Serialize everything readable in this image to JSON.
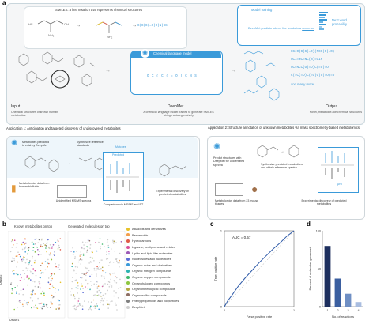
{
  "panel_a": {
    "letter": "a",
    "smiles_caption": "SMILES: a line notation that represents chemical structures",
    "smiles_string": "C(C(C(=O)O)N)CS",
    "model_training": "Model training",
    "deepmet_predicts_prefix": "DeepMet predicts tokens like words in a ",
    "deepmet_predicts_suffix": "sentence",
    "next_word": "Next word probability",
    "clm_label": "Chemical language model",
    "clm_sequence": "O C ( C ( = O ) C N S",
    "outputs": [
      "OS(O)C(S(=O)(NCC(O)=O)",
      "NC1=NC=NC(N)=C1N",
      "NC(NCC(O)=O)C(=O)=O",
      "C(=C(=O)C(=O)O)C(=O)=O",
      "and many more"
    ],
    "input_title": "Input",
    "input_sub": "Chemical structures of known human metabolites",
    "deepmet_title": "DeepMet",
    "deepmet_sub": "A chemical language model trained to generate SMILES strings autoregressively",
    "output_title": "Output",
    "output_sub": "Novel, metabolite-like chemical structures"
  },
  "app1": {
    "title": "Application 1: Anticipation and targeted discovery of undiscovered metabolites",
    "predicted": "Metabolites predicted to exist by DeepMet",
    "synthesize": "Synthesize reference standards",
    "matches": "Matches",
    "predicted_lbl": "Predicted",
    "metabolomics": "Metabolomics data from human biofluids",
    "unidentified": "Unidentified MS/MS spectra",
    "comparison": "Comparison via MS/MS and RT",
    "experimental": "Experimental discovery of predicted metabolites"
  },
  "app2": {
    "title": "Application 2: Structure annotation of unknown metabolites via mass spectrometry-based metabolomics",
    "predict": "Predict structures with DeepMet for unidentified spectra",
    "synthesize": "Synthesize predicted metabolites and obtain reference spectra",
    "metabolomics": "Metabolomics data from 23 mouse tissues",
    "experimental": "Experimental discovery of predicted metabolites",
    "ms_lbl": "μRT"
  },
  "panel_b": {
    "letter": "b",
    "left_title": "Known metabolites on top",
    "right_title": "Generated molecules on top",
    "xlabel": "UMAP1",
    "ylabel": "UMAP2",
    "legend": [
      {
        "label": "Alkaloids and derivatives",
        "color": "#e6c229"
      },
      {
        "label": "Benzenoids",
        "color": "#f29e4c"
      },
      {
        "label": "Hydrocarbons",
        "color": "#e05a47"
      },
      {
        "label": "Lignans, neolignans and related",
        "color": "#d94f9b"
      },
      {
        "label": "Lipids and lipid-like molecules",
        "color": "#9b59b6"
      },
      {
        "label": "Nucleosides and nucleotides",
        "color": "#5b6dd6"
      },
      {
        "label": "Organic acids and derivatives",
        "color": "#3a9ad9"
      },
      {
        "label": "Organic nitrogen compounds",
        "color": "#2bb3b1"
      },
      {
        "label": "Organic oxygen compounds",
        "color": "#3fb86b"
      },
      {
        "label": "Organohalogen compounds",
        "color": "#8cc63f"
      },
      {
        "label": "Organoheterocyclic compounds",
        "color": "#b5a642"
      },
      {
        "label": "Organosulfur compounds",
        "color": "#8d6e63"
      },
      {
        "label": "Phenylpropanoids and polyketides",
        "color": "#7f7f7f"
      },
      {
        "label": "DeepMet",
        "color": "#cfcfcf"
      }
    ]
  },
  "chart_data": [
    {
      "type": "line",
      "panel": "c",
      "annotation": "AUC = 0.57",
      "xlabel": "False positive rate",
      "ylabel": "True positive rate",
      "xlim": [
        0,
        1
      ],
      "ylim": [
        0,
        1
      ],
      "series": [
        {
          "x": [
            0,
            0.05,
            0.1,
            0.2,
            0.3,
            0.4,
            0.5,
            0.6,
            0.7,
            0.8,
            0.9,
            1.0
          ],
          "y": [
            0,
            0.08,
            0.14,
            0.27,
            0.38,
            0.48,
            0.58,
            0.67,
            0.76,
            0.84,
            0.93,
            1.0
          ]
        }
      ]
    },
    {
      "type": "bar",
      "panel": "d",
      "xlabel": "No. of reactions",
      "ylabel": "Per cent of molecules generated",
      "categories": [
        "1",
        "2",
        "3",
        "4"
      ],
      "values": [
        80,
        37,
        17,
        6
      ],
      "ylim": [
        0,
        100
      ],
      "yticks": [
        0,
        50,
        100
      ],
      "colors": [
        "#1d2f5e",
        "#3b5fa0",
        "#6f8fc4",
        "#a9bde0"
      ]
    }
  ],
  "panel_c": {
    "letter": "c"
  },
  "panel_d": {
    "letter": "d"
  },
  "roc_ticks": [
    "0",
    "1"
  ]
}
